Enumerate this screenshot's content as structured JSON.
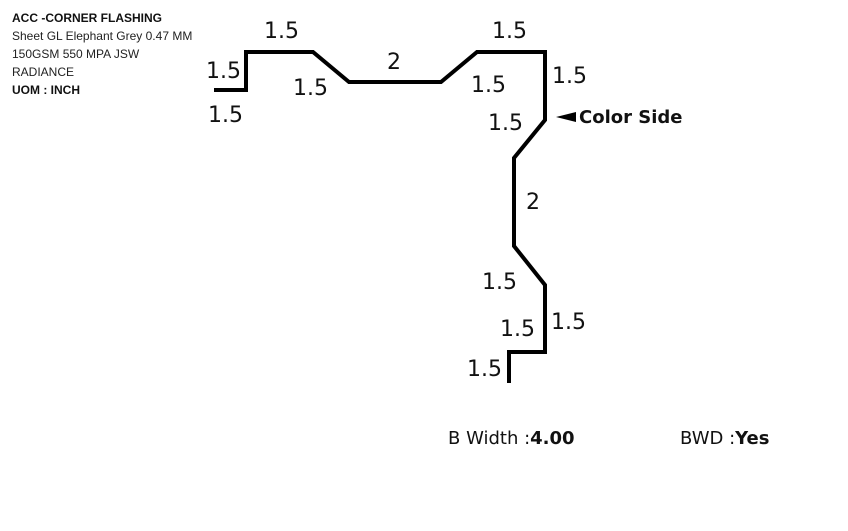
{
  "info": {
    "title": "ACC -CORNER FLASHING",
    "line1": "Sheet GL Elephant Grey 0.47 MM",
    "line2": "150GSM 550 MPA JSW",
    "line3": "RADIANCE",
    "uom": "UOM : INCH"
  },
  "dims": {
    "d1": "1.5",
    "d2": "1.5",
    "d3": "1.5",
    "d4": "1.5",
    "d5": "2",
    "d6": "1.5",
    "d7": "1.5",
    "d8": "1.5",
    "d9": "1.5",
    "d10": "2",
    "d11": "1.5",
    "d12": "1.5",
    "d13": "1.5",
    "d14": "1.5"
  },
  "color_side": "Color Side",
  "footer": {
    "bwidth_label": "B Width :",
    "bwidth_value": "4.00",
    "bwd_label": "BWD :",
    "bwd_value": "Yes"
  },
  "colors": {
    "stroke": "#000000"
  }
}
